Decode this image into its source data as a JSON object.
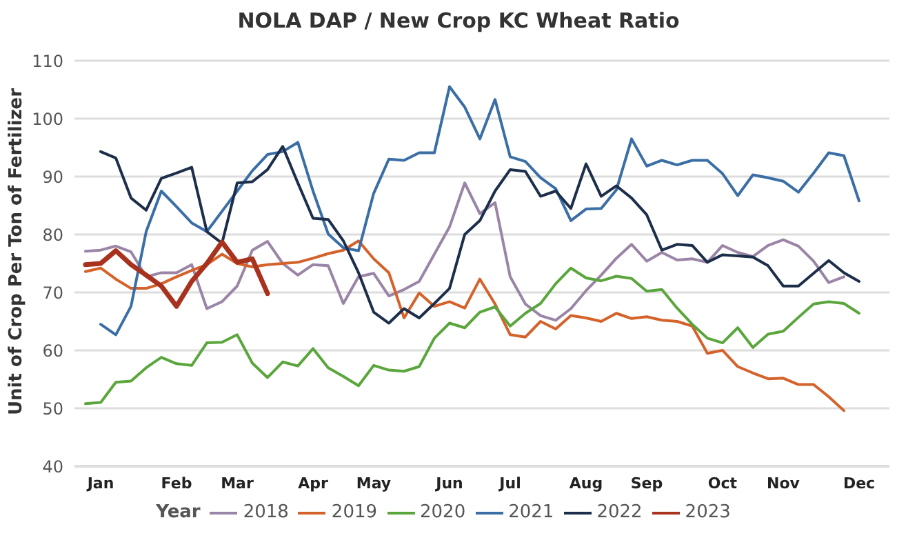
{
  "chart_data": {
    "type": "line",
    "title": "NOLA DAP / New Crop KC Wheat Ratio",
    "ylabel": "Unit of Crop Per Ton of Fertilizer",
    "legend_title": "Year",
    "legend": "bottom",
    "grid": "y",
    "marker": "none",
    "line_style": "solid",
    "categories": [
      null,
      "Jan",
      null,
      null,
      null,
      null,
      "Feb",
      null,
      null,
      null,
      "Mar",
      null,
      null,
      null,
      null,
      "Apr",
      null,
      null,
      null,
      "May",
      null,
      null,
      null,
      null,
      "Jun",
      null,
      null,
      null,
      "Jul",
      null,
      null,
      null,
      null,
      "Aug",
      null,
      null,
      null,
      "Sep",
      null,
      null,
      null,
      null,
      "Oct",
      null,
      null,
      null,
      "Nov",
      null,
      null,
      null,
      null,
      "Dec"
    ],
    "ylim": [
      40,
      110
    ],
    "yticks": [
      40,
      50,
      60,
      70,
      80,
      90,
      100,
      110
    ],
    "series": [
      {
        "name": "2018",
        "color": "#9b85a6",
        "values": [
          77.1,
          77.3,
          78,
          77,
          72.7,
          73.4,
          73.4,
          74.8,
          67.2,
          68.4,
          71.1,
          77.3,
          78.8,
          75,
          73,
          74.8,
          74.6,
          68.1,
          72.7,
          73.3,
          69.4,
          70.5,
          71.9,
          76.6,
          81.3,
          88.9,
          83.6,
          85.5,
          72.7,
          68,
          66,
          65.2,
          67.2,
          70.3,
          73,
          75.9,
          78.3,
          75.4,
          76.9,
          75.6,
          75.8,
          75.2,
          78.1,
          76.9,
          76.2,
          78.1,
          79.1,
          78,
          75.4,
          71.7,
          72.7,
          null
        ]
      },
      {
        "name": "2019",
        "color": "#d4622a",
        "values": [
          73.6,
          74.2,
          72.3,
          70.7,
          70.7,
          71.5,
          72.7,
          73.8,
          74.8,
          76.6,
          75,
          74.4,
          74.8,
          75,
          75.2,
          75.9,
          76.7,
          77.3,
          78.9,
          75.8,
          73.4,
          65.6,
          69.9,
          67.6,
          68.4,
          67.3,
          72.3,
          68,
          62.7,
          62.3,
          65,
          63.7,
          66,
          65.6,
          65,
          66.4,
          65.5,
          65.8,
          65.2,
          65,
          64.2,
          59.5,
          60,
          57.2,
          56.1,
          55.1,
          55.2,
          54.1,
          54.1,
          52,
          49.6,
          null
        ]
      },
      {
        "name": "2020",
        "color": "#5aa63c",
        "values": [
          50.8,
          51,
          54.5,
          54.7,
          57,
          58.8,
          57.7,
          57.4,
          61.3,
          61.4,
          62.7,
          57.8,
          55.3,
          58,
          57.3,
          60.3,
          57,
          55.5,
          53.9,
          57.4,
          56.6,
          56.4,
          57.2,
          62.1,
          64.7,
          63.9,
          66.6,
          67.5,
          64.2,
          66.4,
          68.1,
          71.5,
          74.2,
          72.5,
          72,
          72.8,
          72.4,
          70.2,
          70.5,
          67.3,
          64.5,
          62.1,
          61.3,
          63.9,
          60.5,
          62.8,
          63.3,
          65.7,
          68,
          68.4,
          68.1,
          66.4
        ]
      },
      {
        "name": "2021",
        "color": "#3a6ea5",
        "values": [
          null,
          64.5,
          62.7,
          67.6,
          80.5,
          87.5,
          84.8,
          82,
          80.5,
          84,
          87.5,
          91,
          93.8,
          94.3,
          95.9,
          87.5,
          80.1,
          77.7,
          77.2,
          87.1,
          93,
          92.8,
          94.1,
          94.1,
          105.5,
          102,
          96.5,
          103.3,
          93.4,
          92.6,
          89.8,
          87.9,
          82.4,
          84.4,
          84.5,
          87.7,
          96.5,
          91.8,
          92.8,
          92,
          92.8,
          92.8,
          90.5,
          86.7,
          90.3,
          89.8,
          89.2,
          87.3,
          90.6,
          94.1,
          93.6,
          85.8
        ]
      },
      {
        "name": "2022",
        "color": "#1c2e4a",
        "values": [
          null,
          94.3,
          93.2,
          86.3,
          84.2,
          89.7,
          90.6,
          91.6,
          80.5,
          78.5,
          88.9,
          89.1,
          91.2,
          95.2,
          88.9,
          82.8,
          82.6,
          78.9,
          73.4,
          66.6,
          64.7,
          67.2,
          65.6,
          68.1,
          70.7,
          80,
          82.4,
          87.5,
          91.2,
          90.9,
          86.6,
          87.5,
          84.5,
          92.2,
          86.6,
          88.4,
          86.3,
          83.4,
          77.3,
          78.3,
          78.1,
          75.2,
          76.5,
          76.3,
          76.1,
          74.6,
          71.1,
          71.1,
          73.3,
          75.5,
          73.4,
          71.9
        ]
      },
      {
        "name": "2023",
        "color": "#a8321e",
        "values": [
          74.8,
          75,
          77.2,
          74.8,
          73,
          71.1,
          67.6,
          71.9,
          75,
          78.7,
          75.2,
          75.8,
          69.8,
          null,
          null,
          null,
          null,
          null,
          null,
          null,
          null,
          null,
          null,
          null,
          null,
          null,
          null,
          null,
          null,
          null,
          null,
          null,
          null,
          null,
          null,
          null,
          null,
          null,
          null,
          null,
          null,
          null,
          null,
          null,
          null,
          null,
          null,
          null,
          null,
          null,
          null,
          null
        ]
      }
    ]
  }
}
